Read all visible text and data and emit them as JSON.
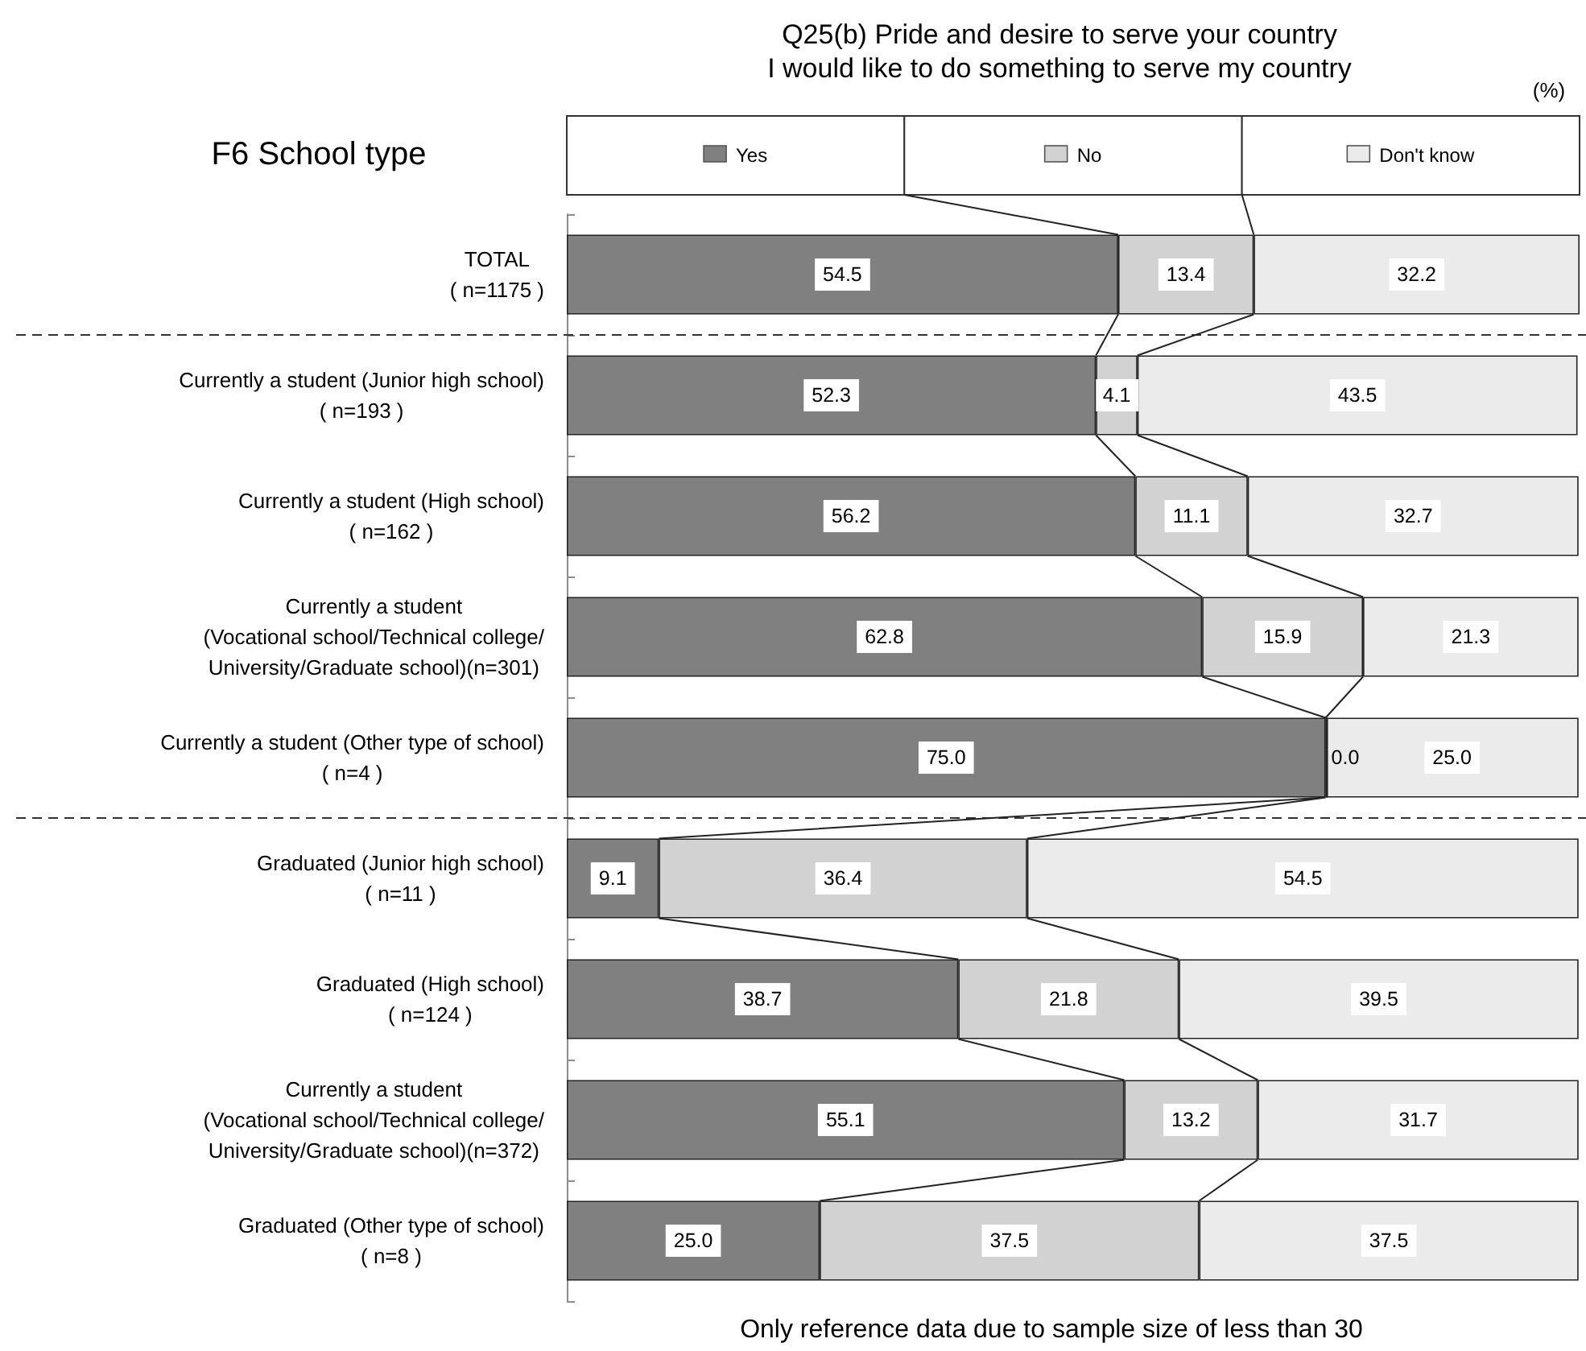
{
  "chart_data": {
    "type": "bar",
    "orientation": "horizontal",
    "stacked": true,
    "title": "Q25(b) Pride and desire to serve your country",
    "subtitle": "I would like to do something to serve my country",
    "annotations": [
      "F6 School type",
      "(%)",
      "Only reference data due to sample size of less than 30"
    ],
    "categories": [
      "TOTAL\n( n=1175 )",
      "Currently a student (Junior high school)\n( n=193 )",
      "Currently a student (High school)\n( n=162 )",
      "Currently a student\n(Vocational school/Technical college/\nUniversity/Graduate school)(n=301)",
      "Currently a student (Other type of school)\n( n=4 )",
      "Graduated (Junior high school)\n( n=11 )",
      "Graduated (High school)\n( n=124 )",
      "Currently a student\n(Vocational school/Technical college/\nUniversity/Graduate school)(n=372)",
      "Graduated (Other type of school)\n( n=8 )"
    ],
    "series": [
      {
        "name": "Yes",
        "color": "#808080",
        "values": [
          54.5,
          52.3,
          56.2,
          62.8,
          75.0,
          9.1,
          38.7,
          55.1,
          25.0
        ],
        "value_labels": [
          "54.5",
          "52.3",
          "56.2",
          "62.8",
          "75.0",
          "9.1",
          "38.7",
          "55.1",
          "25.0"
        ]
      },
      {
        "name": "No",
        "color": "#d2d2d2",
        "values": [
          13.4,
          4.1,
          11.1,
          15.9,
          0.0,
          36.4,
          21.8,
          13.2,
          37.5
        ],
        "value_labels": [
          "13.4",
          "4.1",
          "11.1",
          "15.9",
          "0.0",
          "36.4",
          "21.8",
          "13.2",
          "37.5"
        ]
      },
      {
        "name": "Don't know",
        "color": "#ebebeb",
        "values": [
          32.2,
          43.5,
          32.7,
          21.3,
          25.0,
          54.5,
          39.5,
          31.7,
          37.5
        ],
        "value_labels": [
          "32.2",
          "43.5",
          "32.7",
          "21.3",
          "25.0",
          "54.5",
          "39.5",
          "31.7",
          "37.5"
        ]
      }
    ],
    "xlim": [
      0,
      100.1
    ],
    "tick_labels": "y",
    "legend": "top"
  }
}
